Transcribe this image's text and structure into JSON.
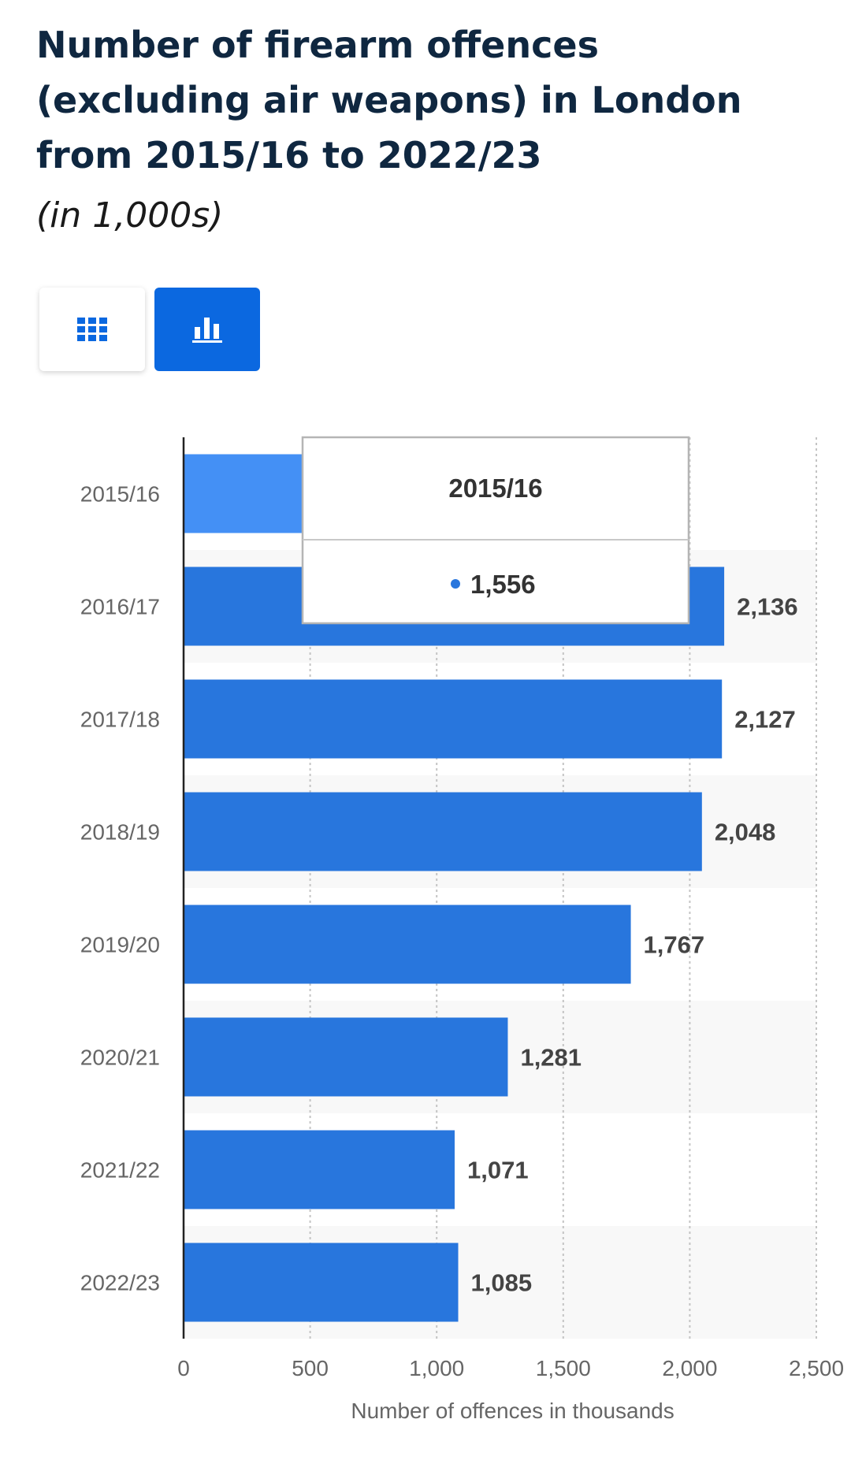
{
  "header": {
    "title": "Number of firearm offences (excluding air weapons) in London from 2015/16 to 2022/23",
    "subtitle": "(in 1,000s)"
  },
  "view_toggle": {
    "table_icon": "grid-icon",
    "chart_icon": "bar-chart-icon",
    "active": "chart"
  },
  "colors": {
    "bar": "#2876dd",
    "bar_highlight": "#4490f5",
    "active_tab": "#0b68e0",
    "title": "#0f2740"
  },
  "tooltip": {
    "category": "2015/16",
    "value": "1,556"
  },
  "chart_data": {
    "type": "bar",
    "orientation": "horizontal",
    "categories": [
      "2015/16",
      "2016/17",
      "2017/18",
      "2018/19",
      "2019/20",
      "2020/21",
      "2021/22",
      "2022/23"
    ],
    "values": [
      1556,
      2136,
      2127,
      2048,
      1767,
      1281,
      1071,
      1085
    ],
    "value_labels": [
      "1,556",
      "2,136",
      "2,127",
      "2,048",
      "1,767",
      "1,281",
      "1,071",
      "1,085"
    ],
    "xlabel": "Number of offences in thousands",
    "xlim": [
      0,
      2500
    ],
    "xticks": [
      0,
      500,
      1000,
      1500,
      2000,
      2500
    ],
    "xtick_labels": [
      "0",
      "500",
      "1,000",
      "1,500",
      "2,000",
      "2,500"
    ],
    "grid": "vertical dotted",
    "highlighted": "2015/16"
  }
}
